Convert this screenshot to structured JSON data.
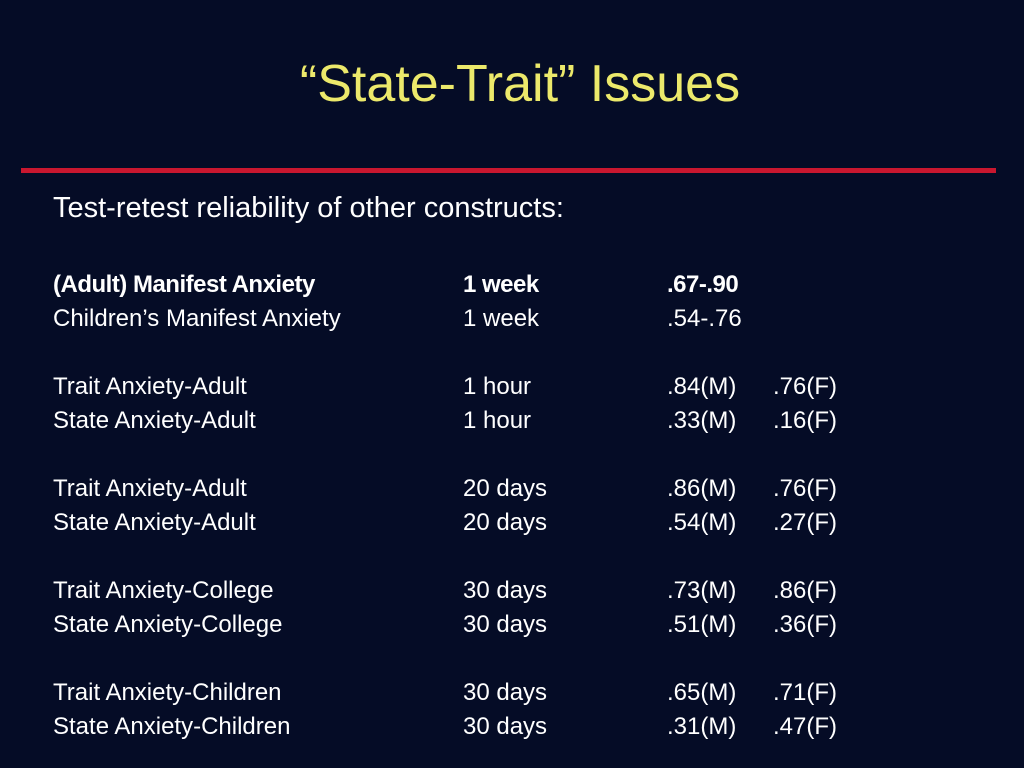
{
  "slide": {
    "title": "“State-Trait” Issues",
    "subtitle": "Test-retest reliability of other constructs:",
    "accent_color": "#c9172f",
    "title_color": "#ece96b",
    "background_color": "#050c26"
  },
  "rows": [
    {
      "construct": "(Adult) Manifest Anxiety",
      "interval": "1 week",
      "male": ".67-.90",
      "female": "",
      "bold": true
    },
    {
      "construct": "Children’s Manifest Anxiety",
      "interval": "1 week",
      "male": ".54-.76",
      "female": ""
    },
    {
      "construct": "Trait Anxiety-Adult",
      "interval": "1 hour",
      "male": ".84(M)",
      "female": ".76(F)"
    },
    {
      "construct": "State Anxiety-Adult",
      "interval": "1 hour",
      "male": ".33(M)",
      "female": ".16(F)"
    },
    {
      "construct": "Trait Anxiety-Adult",
      "interval": "20 days",
      "male": ".86(M)",
      "female": ".76(F)"
    },
    {
      "construct": "State Anxiety-Adult",
      "interval": "20 days",
      "male": ".54(M)",
      "female": ".27(F)"
    },
    {
      "construct": "Trait Anxiety-College",
      "interval": "30 days",
      "male": ".73(M)",
      "female": ".86(F)"
    },
    {
      "construct": "State Anxiety-College",
      "interval": "30 days",
      "male": ".51(M)",
      "female": ".36(F)"
    },
    {
      "construct": "Trait Anxiety-Children",
      "interval": "30 days",
      "male": ".65(M)",
      "female": ".71(F)"
    },
    {
      "construct": "State Anxiety-Children",
      "interval": "30 days",
      "male": ".31(M)",
      "female": " .47(F)"
    }
  ]
}
